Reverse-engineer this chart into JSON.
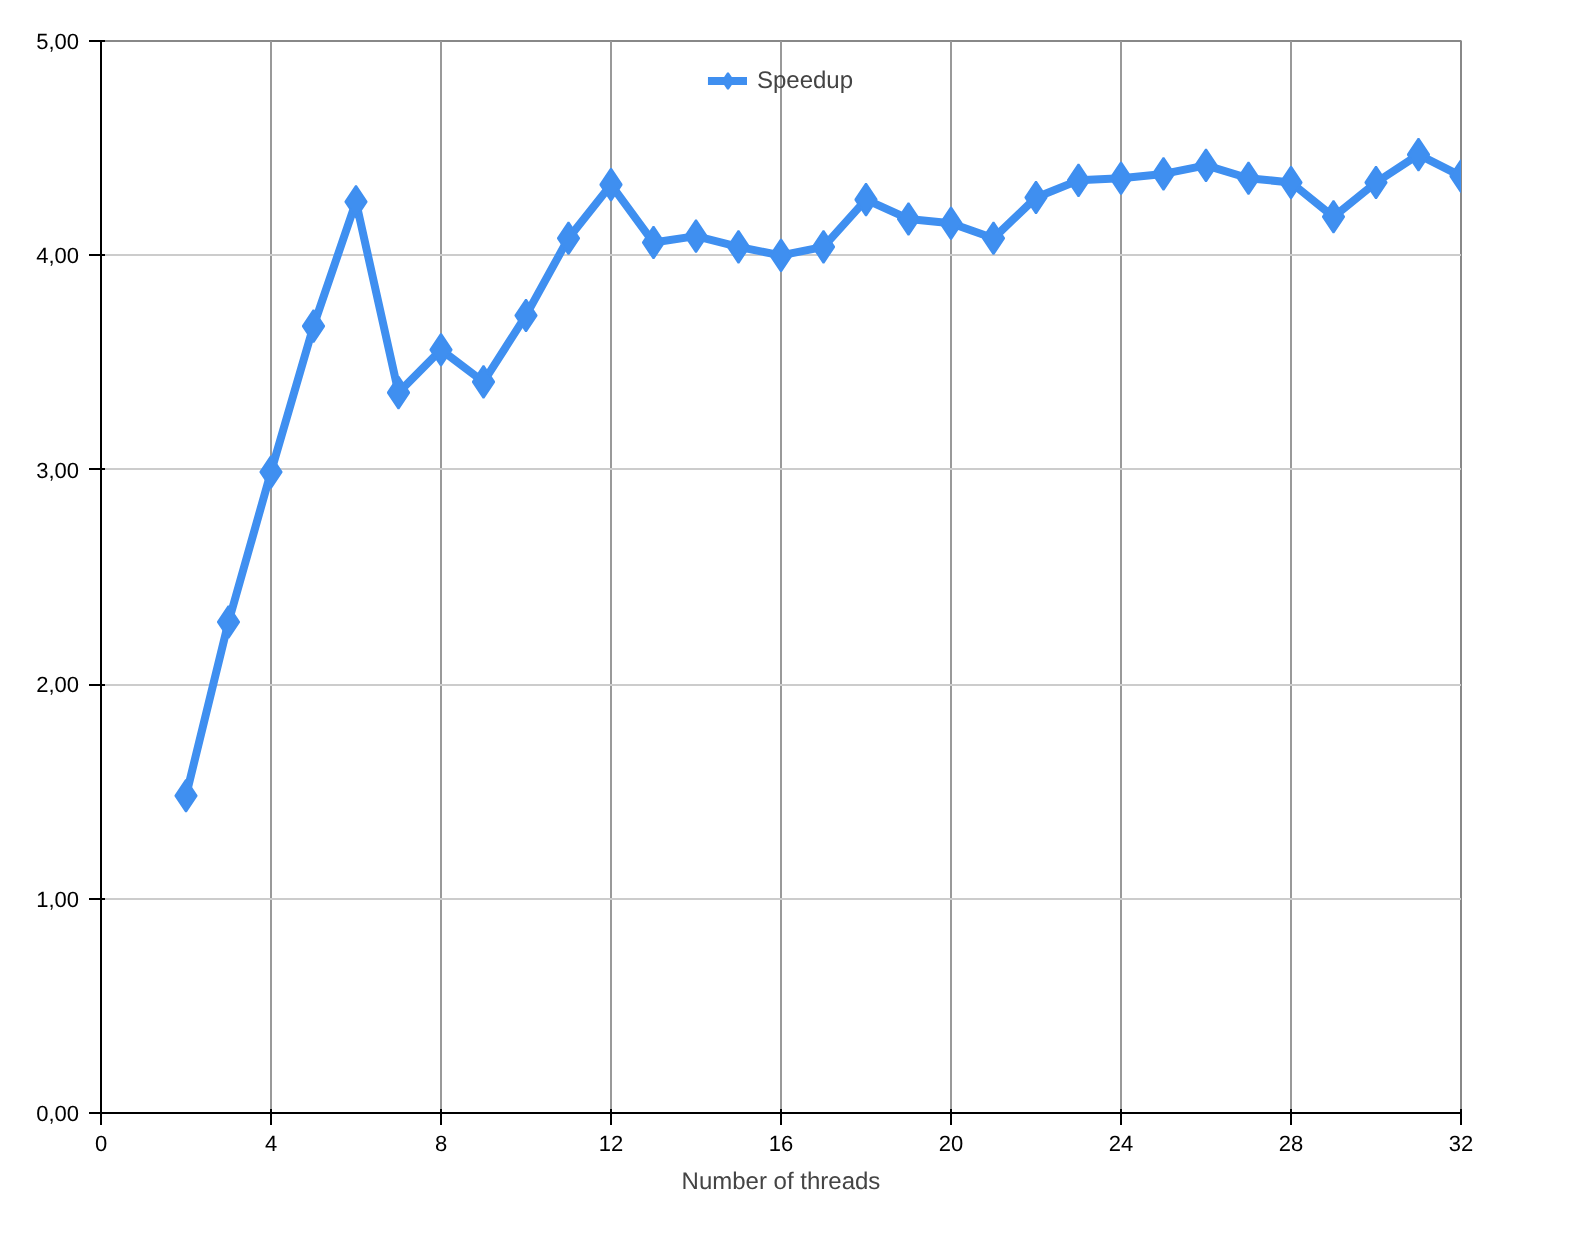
{
  "chart_data": {
    "type": "line",
    "xlabel": "Number of threads",
    "x": [
      2,
      3,
      4,
      5,
      6,
      7,
      8,
      9,
      10,
      11,
      12,
      13,
      14,
      15,
      16,
      17,
      18,
      19,
      20,
      21,
      22,
      23,
      24,
      25,
      26,
      27,
      28,
      29,
      30,
      31,
      32
    ],
    "series": [
      {
        "name": "Speedup",
        "color": "#3f8ff0",
        "values": [
          1.48,
          2.29,
          2.99,
          3.67,
          4.25,
          3.36,
          3.56,
          3.41,
          3.72,
          4.08,
          4.33,
          4.06,
          4.09,
          4.04,
          4.0,
          4.04,
          4.26,
          4.17,
          4.15,
          4.08,
          4.27,
          4.35,
          4.36,
          4.38,
          4.42,
          4.36,
          4.34,
          4.18,
          4.34,
          4.47,
          4.37
        ]
      }
    ],
    "xlim": [
      0,
      32
    ],
    "xticks": [
      0,
      4,
      8,
      12,
      16,
      20,
      24,
      28,
      32
    ],
    "ylim": [
      0,
      5
    ],
    "yticks": [
      {
        "value": 0,
        "label": "0,00"
      },
      {
        "value": 1,
        "label": "1,00"
      },
      {
        "value": 2,
        "label": "2,00"
      },
      {
        "value": 3,
        "label": "3,00"
      },
      {
        "value": 4,
        "label": "4,00"
      },
      {
        "value": 5,
        "label": "5,00"
      }
    ],
    "grid": true,
    "legend": "top",
    "marker": "diamond",
    "line_style": "solid"
  }
}
